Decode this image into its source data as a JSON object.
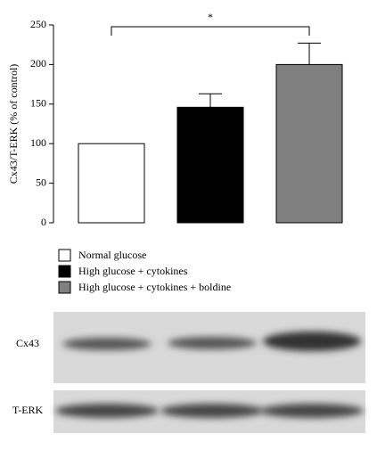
{
  "chart_data": {
    "type": "bar",
    "ylabel": "Cx43/T-ERK (% of control)",
    "values": [
      100,
      146,
      200
    ],
    "errors": [
      0,
      17,
      27
    ],
    "legend": [
      {
        "name": "Normal glucose",
        "color": "#ffffff"
      },
      {
        "name": "High glucose + cytokines",
        "color": "#000000"
      },
      {
        "name": "High glucose + cytokines + boldine",
        "color": "#808080"
      }
    ],
    "ylim": [
      0,
      250
    ],
    "yticks": [
      0,
      50,
      100,
      150,
      200,
      250
    ],
    "annotation": "*"
  },
  "blot": {
    "labels": [
      "Cx43",
      "T-ERK"
    ]
  }
}
